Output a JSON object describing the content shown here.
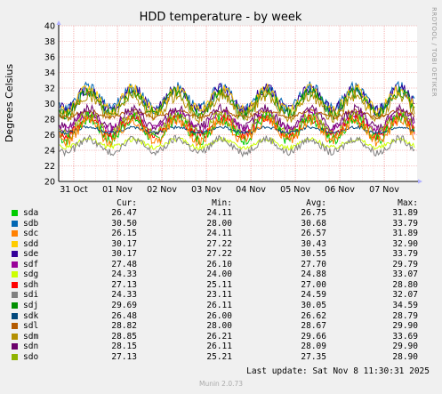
{
  "chart_data": {
    "type": "line",
    "title": "HDD temperature - by week",
    "ylabel": "Degrees Celsius",
    "side_label": "RRDTOOL / TOBI OETIKER",
    "ylim": [
      20,
      40
    ],
    "yticks": [
      20,
      22,
      24,
      26,
      28,
      30,
      32,
      34,
      36,
      38,
      40
    ],
    "x_ticks": [
      "31 Oct",
      "01 Nov",
      "02 Nov",
      "03 Nov",
      "04 Nov",
      "05 Nov",
      "06 Nov",
      "07 Nov"
    ],
    "grid": true,
    "series": [
      {
        "name": "sda",
        "color": "#00cc00",
        "cur": "26.47",
        "min": "24.11",
        "avg": "26.75",
        "max": "31.89"
      },
      {
        "name": "sdb",
        "color": "#0066b3",
        "cur": "30.50",
        "min": "28.00",
        "avg": "30.68",
        "max": "33.79"
      },
      {
        "name": "sdc",
        "color": "#ff8000",
        "cur": "26.15",
        "min": "24.11",
        "avg": "26.57",
        "max": "31.89"
      },
      {
        "name": "sdd",
        "color": "#ffcc00",
        "cur": "30.17",
        "min": "27.22",
        "avg": "30.43",
        "max": "32.90"
      },
      {
        "name": "sde",
        "color": "#330099",
        "cur": "30.17",
        "min": "27.22",
        "avg": "30.55",
        "max": "33.79"
      },
      {
        "name": "sdf",
        "color": "#990099",
        "cur": "27.48",
        "min": "26.10",
        "avg": "27.70",
        "max": "29.79"
      },
      {
        "name": "sdg",
        "color": "#ccff00",
        "cur": "24.33",
        "min": "24.00",
        "avg": "24.88",
        "max": "33.07"
      },
      {
        "name": "sdh",
        "color": "#ff0000",
        "cur": "27.13",
        "min": "25.11",
        "avg": "27.00",
        "max": "28.80"
      },
      {
        "name": "sdi",
        "color": "#808080",
        "cur": "24.33",
        "min": "23.11",
        "avg": "24.59",
        "max": "32.07"
      },
      {
        "name": "sdj",
        "color": "#008f00",
        "cur": "29.69",
        "min": "26.11",
        "avg": "30.05",
        "max": "34.59"
      },
      {
        "name": "sdk",
        "color": "#00487d",
        "cur": "26.48",
        "min": "26.00",
        "avg": "26.62",
        "max": "28.79"
      },
      {
        "name": "sdl",
        "color": "#b35a00",
        "cur": "28.82",
        "min": "28.00",
        "avg": "28.67",
        "max": "29.90"
      },
      {
        "name": "sdm",
        "color": "#b38f00",
        "cur": "28.85",
        "min": "26.21",
        "avg": "29.66",
        "max": "33.69"
      },
      {
        "name": "sdn",
        "color": "#6b006b",
        "cur": "28.15",
        "min": "26.11",
        "avg": "28.09",
        "max": "29.90"
      },
      {
        "name": "sdo",
        "color": "#8fb300",
        "cur": "27.13",
        "min": "25.21",
        "avg": "27.35",
        "max": "28.90"
      }
    ]
  },
  "legend_header": {
    "cur": "Cur:",
    "min": "Min:",
    "avg": "Avg:",
    "max": "Max:"
  },
  "footer": {
    "last_update": "Last update: Sat Nov  8 11:30:31 2025",
    "munin": "Munin 2.0.73"
  }
}
